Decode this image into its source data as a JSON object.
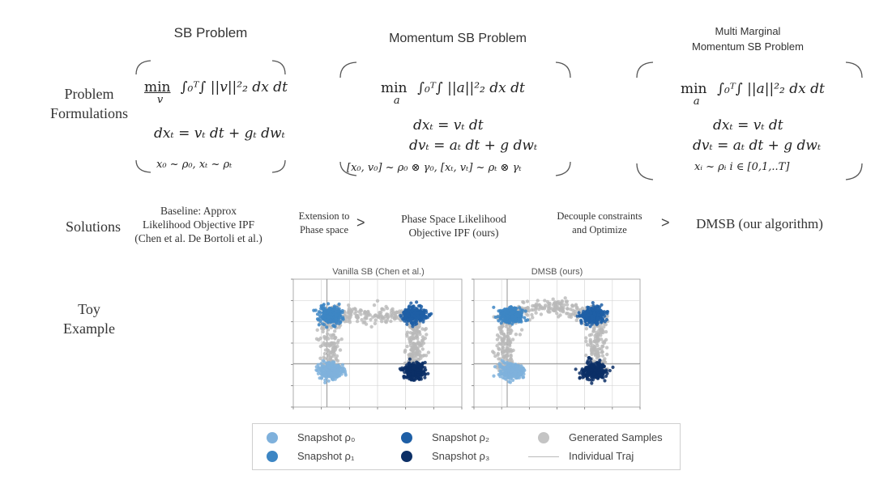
{
  "columns": {
    "sb": {
      "title": "SB Problem",
      "objective_min": "min",
      "objective_sub": "v",
      "objective_body": "∫₀ᵀ∫ ||v||²₂ dx dt",
      "dynamics": [
        "dxₜ = vₜ dt + gₜ dwₜ"
      ],
      "constraint": "x₀ ~ ρ₀,   xₜ ~ ρₜ"
    },
    "momentum": {
      "title": "Momentum SB Problem",
      "objective_min": "min",
      "objective_sub": "a",
      "objective_body": "∫₀ᵀ∫ ||a||²₂ dx dt",
      "dynamics": [
        "dxₜ = vₜ dt",
        "dvₜ = aₜ dt + g dwₜ"
      ],
      "constraint": "[x₀, v₀] ~ ρ₀ ⊗ γ₀,   [xₜ, vₜ] ~ ρₜ ⊗ γₜ"
    },
    "multi": {
      "title_line1": "Multi Marginal",
      "title_line2": "Momentum SB Problem",
      "objective_min": "min",
      "objective_sub": "a",
      "objective_body": "∫₀ᵀ∫ ||a||²₂ dx dt",
      "dynamics": [
        "dxₜ = vₜ dt",
        "dvₜ = aₜ dt + g dwₜ"
      ],
      "constraint": "xᵢ ~ ρᵢ    i ∈ [0,1,..T]"
    }
  },
  "row_labels": {
    "problem": [
      "Problem",
      "Formulations"
    ],
    "solutions": "Solutions",
    "toy": [
      "Toy",
      "Example"
    ]
  },
  "solutions": {
    "baseline": [
      "Baseline: Approx",
      "Likelihood Objective IPF",
      "(Chen et al. De Bortoli et al.)"
    ],
    "extension": [
      "Extension to",
      "Phase space"
    ],
    "phase": [
      "Phase Space Likelihood",
      "Objective  IPF (ours)"
    ],
    "decouple": [
      "Decouple constraints",
      "and Optimize"
    ],
    "dmsb": "DMSB (our algorithm)",
    "arrow": ">"
  },
  "plots": [
    {
      "title": "Vanilla SB (Chen et al.)"
    },
    {
      "title": "DMSB (ours)"
    }
  ],
  "legend": [
    {
      "label": "Snapshot ρ₀",
      "color": "#7fb1dc"
    },
    {
      "label": "Snapshot ρ₁",
      "color": "#3d86c4"
    },
    {
      "label": "Snapshot ρ₂",
      "color": "#1e5fa6"
    },
    {
      "label": "Snapshot ρ₃",
      "color": "#0c2f66"
    },
    {
      "label": "Generated Samples",
      "color": "#c4c4c4"
    },
    {
      "label": "Individual Traj",
      "color": "#bbbbbb"
    }
  ],
  "colors": {
    "rho0": "#7fb1dc",
    "rho1": "#3d86c4",
    "rho2": "#1e5fa6",
    "rho3": "#0c2f66",
    "generated": "#b9b9b9",
    "grid": "#d6d6d6"
  }
}
